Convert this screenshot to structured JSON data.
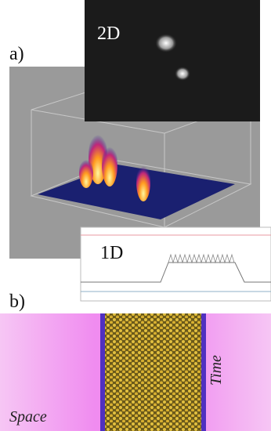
{
  "panel_a": {
    "label": "a)",
    "inset_2d": "2D",
    "inset_1d": "1D"
  },
  "panel_b": {
    "label": "b)",
    "axis_time": "Time",
    "axis_space": "Space"
  }
}
